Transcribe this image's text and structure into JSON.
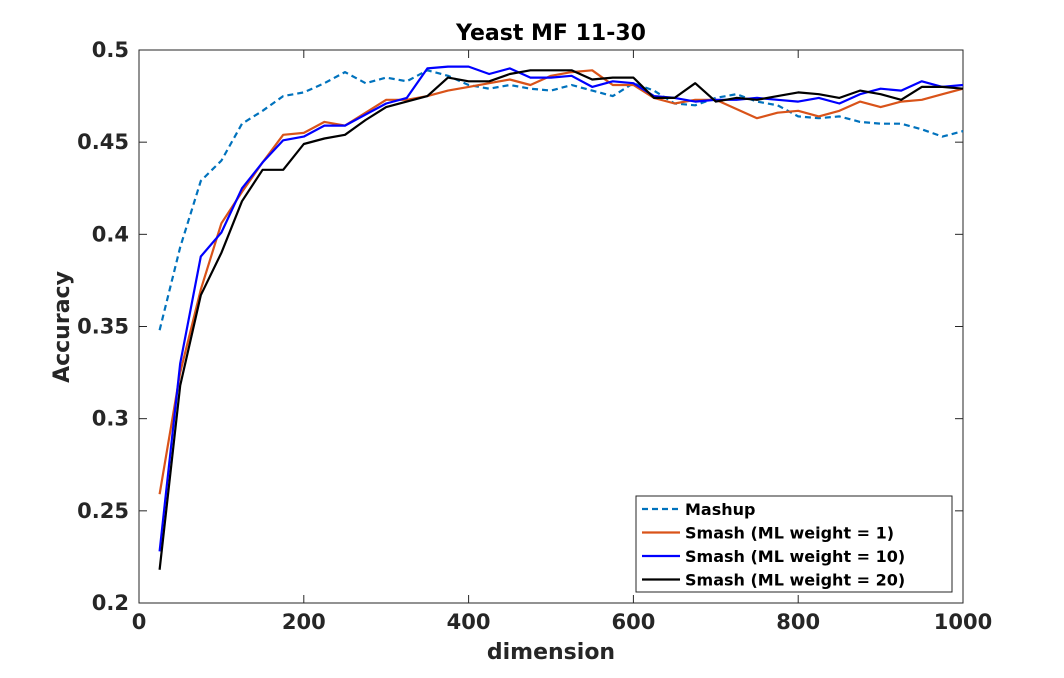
{
  "chart_data": {
    "type": "line",
    "title": "Yeast MF 11-30",
    "xlabel": "dimension",
    "ylabel": "Accuracy",
    "xlim": [
      0,
      1000
    ],
    "ylim": [
      0.2,
      0.5
    ],
    "xticks": [
      0,
      200,
      400,
      600,
      800,
      1000
    ],
    "yticks": [
      0.2,
      0.25,
      0.3,
      0.35,
      0.4,
      0.45,
      0.5
    ],
    "xtick_labels": [
      "0",
      "200",
      "400",
      "600",
      "800",
      "1000"
    ],
    "ytick_labels": [
      "0.2",
      "0.25",
      "0.3",
      "0.35",
      "0.4",
      "0.45",
      "0.5"
    ],
    "grid": false,
    "legend_position": "bottom-right",
    "x": [
      25,
      50,
      75,
      100,
      125,
      150,
      175,
      200,
      225,
      250,
      275,
      300,
      325,
      350,
      375,
      400,
      425,
      450,
      475,
      500,
      525,
      550,
      575,
      600,
      625,
      650,
      675,
      700,
      725,
      750,
      775,
      800,
      825,
      850,
      875,
      900,
      925,
      950,
      975,
      1000
    ],
    "series": [
      {
        "name": "Mashup",
        "color": "#0072BD",
        "dash": "dashed",
        "values": [
          0.348,
          0.393,
          0.429,
          0.44,
          0.46,
          0.467,
          0.475,
          0.477,
          0.482,
          0.488,
          0.482,
          0.485,
          0.483,
          0.489,
          0.486,
          0.481,
          0.479,
          0.481,
          0.479,
          0.478,
          0.481,
          0.478,
          0.475,
          0.482,
          0.478,
          0.471,
          0.47,
          0.474,
          0.476,
          0.472,
          0.47,
          0.464,
          0.463,
          0.464,
          0.461,
          0.46,
          0.46,
          0.457,
          0.453,
          0.456
        ]
      },
      {
        "name": "Smash (ML weight = 1)",
        "color": "#D95319",
        "dash": "solid",
        "values": [
          0.259,
          0.325,
          0.37,
          0.406,
          0.423,
          0.439,
          0.454,
          0.455,
          0.461,
          0.459,
          0.466,
          0.473,
          0.473,
          0.475,
          0.478,
          0.48,
          0.482,
          0.484,
          0.481,
          0.486,
          0.488,
          0.489,
          0.481,
          0.481,
          0.474,
          0.471,
          0.473,
          0.473,
          0.468,
          0.463,
          0.466,
          0.467,
          0.464,
          0.467,
          0.472,
          0.469,
          0.472,
          0.473,
          0.476,
          0.479
        ]
      },
      {
        "name": "Smash (ML weight = 10)",
        "color": "#0000FF",
        "dash": "solid",
        "values": [
          0.228,
          0.33,
          0.388,
          0.401,
          0.425,
          0.439,
          0.451,
          0.453,
          0.459,
          0.459,
          0.465,
          0.471,
          0.474,
          0.49,
          0.491,
          0.491,
          0.487,
          0.49,
          0.485,
          0.485,
          0.486,
          0.48,
          0.483,
          0.482,
          0.475,
          0.474,
          0.472,
          0.473,
          0.473,
          0.474,
          0.473,
          0.472,
          0.474,
          0.471,
          0.476,
          0.479,
          0.478,
          0.483,
          0.48,
          0.481
        ]
      },
      {
        "name": "Smash (ML weight = 20)",
        "color": "#000000",
        "dash": "solid",
        "values": [
          0.218,
          0.318,
          0.367,
          0.39,
          0.418,
          0.435,
          0.435,
          0.449,
          0.452,
          0.454,
          0.462,
          0.469,
          0.472,
          0.475,
          0.485,
          0.483,
          0.483,
          0.487,
          0.489,
          0.489,
          0.489,
          0.484,
          0.485,
          0.485,
          0.474,
          0.474,
          0.482,
          0.472,
          0.474,
          0.473,
          0.475,
          0.477,
          0.476,
          0.474,
          0.478,
          0.476,
          0.473,
          0.48,
          0.48,
          0.479
        ]
      }
    ]
  }
}
